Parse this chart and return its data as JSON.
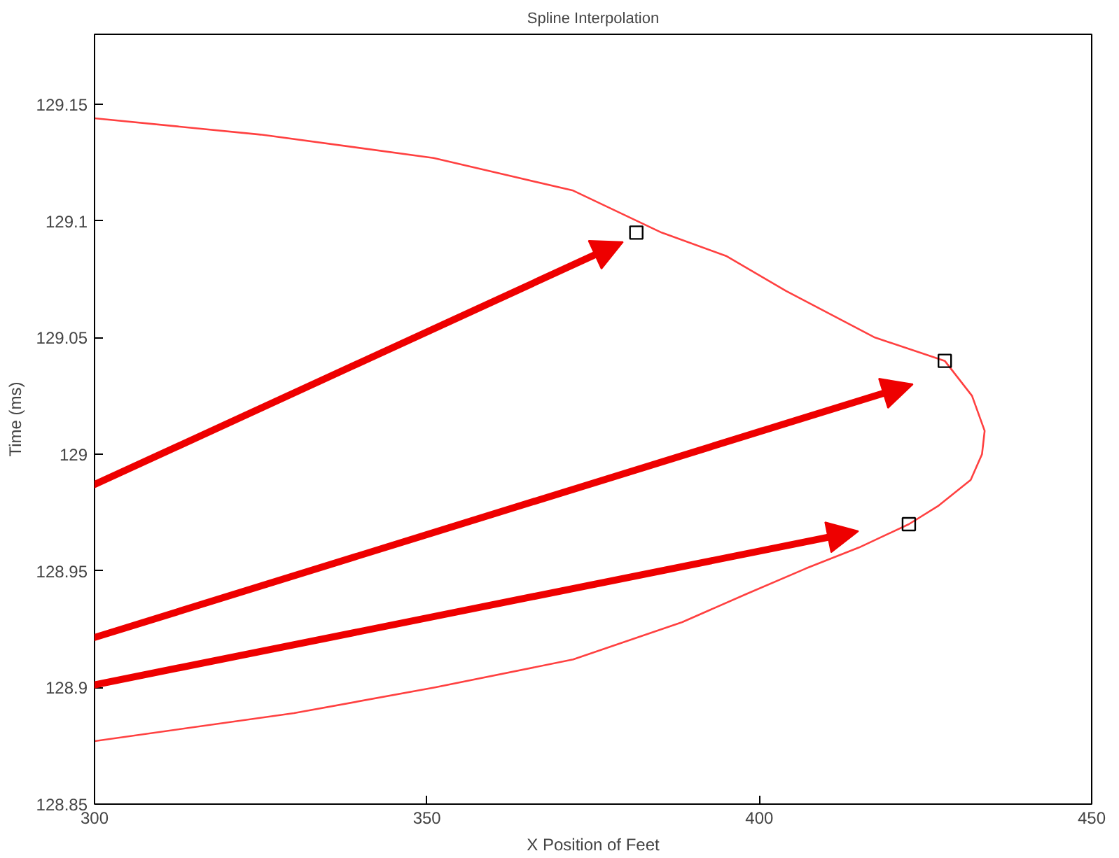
{
  "chart_data": {
    "type": "line",
    "title": "Spline Interpolation",
    "xlabel": "X Position of Feet",
    "ylabel": "Time (ms)",
    "xlim": [
      300,
      450
    ],
    "ylim": [
      128.85,
      129.18
    ],
    "xticks": [
      300,
      350,
      400,
      450
    ],
    "yticks": [
      128.85,
      128.9,
      128.95,
      129,
      129.05,
      129.1,
      129.15
    ],
    "grid": false,
    "series": [
      {
        "color": "#ff4040",
        "x": [
          300,
          325,
          351,
          372,
          385.3,
          395,
          404,
          417.4,
          427.9,
          432,
          433.9,
          433.5,
          431.8,
          427,
          422.5,
          415,
          407,
          398,
          388.4,
          372,
          351.2,
          330,
          300
        ],
        "values": [
          129.144,
          129.137,
          129.127,
          129.113,
          129.095,
          129.085,
          129.07,
          129.05,
          129.04,
          129.025,
          129.01,
          129.0,
          128.989,
          128.978,
          128.97,
          128.96,
          128.951,
          128.94,
          128.928,
          128.912,
          128.9,
          128.889,
          128.877
        ]
      },
      {
        "type": "scatter",
        "marker": "square",
        "color": "#000000",
        "x": [
          381.5,
          427.9,
          422.5
        ],
        "values": [
          129.095,
          129.04,
          128.97
        ]
      }
    ]
  }
}
